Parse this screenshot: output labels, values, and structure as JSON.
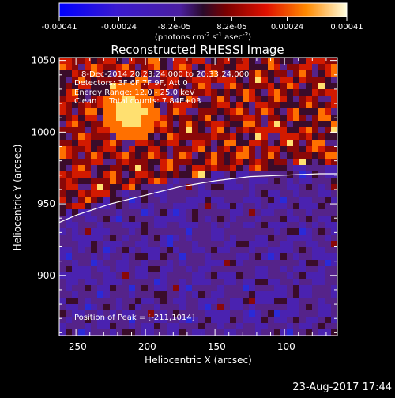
{
  "colorbar": {
    "ticks": [
      "-0.00041",
      "-0.00024",
      "-8.2e-05",
      "8.2e-05",
      "0.00024",
      "0.00041"
    ],
    "units_prefix": "(photons cm",
    "units_exp1": "-2",
    "units_mid": " s",
    "units_exp2": "-1",
    "units_mid2": " asec",
    "units_exp3": "-2",
    "units_suffix": ")",
    "min": -0.00041,
    "max": 0.00041
  },
  "chart_data": {
    "type": "heatmap",
    "title": "Reconstructed RHESSI Image",
    "xlabel": "Heliocentric X (arcsec)",
    "ylabel": "Heliocentric Y (arcsec)",
    "xlim": [
      -262,
      -62
    ],
    "ylim": [
      858,
      1052
    ],
    "xticks": [
      -250,
      -200,
      -150,
      -100
    ],
    "xtick_labels": [
      "-250",
      "-200",
      "-150",
      "-100"
    ],
    "yticks": [
      900,
      950,
      1000,
      1050
    ],
    "ytick_labels": [
      "900",
      "950",
      "1000",
      "1050"
    ],
    "colormap": "hot-blue diverging",
    "limb_curve": {
      "x": [
        -262,
        -250,
        -225,
        -200,
        -175,
        -150,
        -125,
        -100,
        -75,
        -62
      ],
      "y": [
        937,
        942,
        950,
        956,
        962,
        966,
        969,
        970,
        971,
        971
      ]
    },
    "peak": {
      "x": -211,
      "y": 1014
    },
    "annotations": {
      "line1": "8-Dec-2014 20:23:24.000 to 20:33:24.000",
      "line2": "Detectors: 3F 6F 7F 9F, Att 0",
      "line3": "Energy Range: 12.0 - 25.0 keV",
      "line4": "Clean     Total counts: 7.84E+03",
      "peak_label": "Position of Peak = [-211,1014]"
    }
  },
  "timestamp": "23-Aug-2017 17:44"
}
